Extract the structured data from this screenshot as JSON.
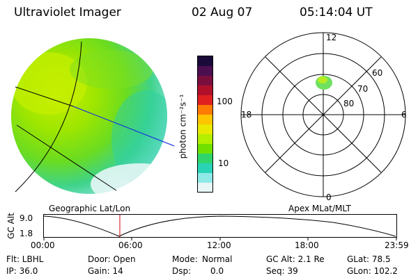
{
  "header": {
    "title": "Ultraviolet Imager",
    "date": "02 Aug 07",
    "time": "05:14:04 UT"
  },
  "colorbar": {
    "unit_label": "photon cm⁻²s⁻¹",
    "ticks": [
      "100",
      "10"
    ],
    "colors": [
      "#1a0a3a",
      "#4b0f4f",
      "#7a0f3e",
      "#b0102a",
      "#e0201f",
      "#ff7a00",
      "#ffc400",
      "#e8e800",
      "#b4ef00",
      "#6fe000",
      "#2fd56a",
      "#29d3b5",
      "#8fe9e6",
      "#e9f6f6"
    ]
  },
  "polar_plot": {
    "mlt_labels": [
      "12",
      "18",
      "6",
      "0"
    ],
    "lat_labels": [
      "60",
      "70",
      "80"
    ]
  },
  "timeline": {
    "left_title": "Geographic Lat/Lon",
    "right_title": "Apex MLat/MLT",
    "y_axis_label": "GC Alt",
    "y_ticks": [
      "9.0",
      "1.8"
    ],
    "time_ticks": [
      "00:00",
      "06:00",
      "12:00",
      "18:00",
      "23:59"
    ],
    "current_marker_color": "#d00000"
  },
  "info": {
    "flt": "Flt: LBHL",
    "ip": "IP: 36.0",
    "door": "Door: Open",
    "gain": "Gain: 14",
    "mode_label": "Mode:",
    "mode_value": "Normal",
    "dsp_label": "Dsp:",
    "dsp_value": "0.0",
    "gc_alt": "GC Alt: 2.1 Re",
    "seq": "Seq: 39",
    "glat": "GLat: 78.5",
    "glon": "GLon: 102.2"
  }
}
